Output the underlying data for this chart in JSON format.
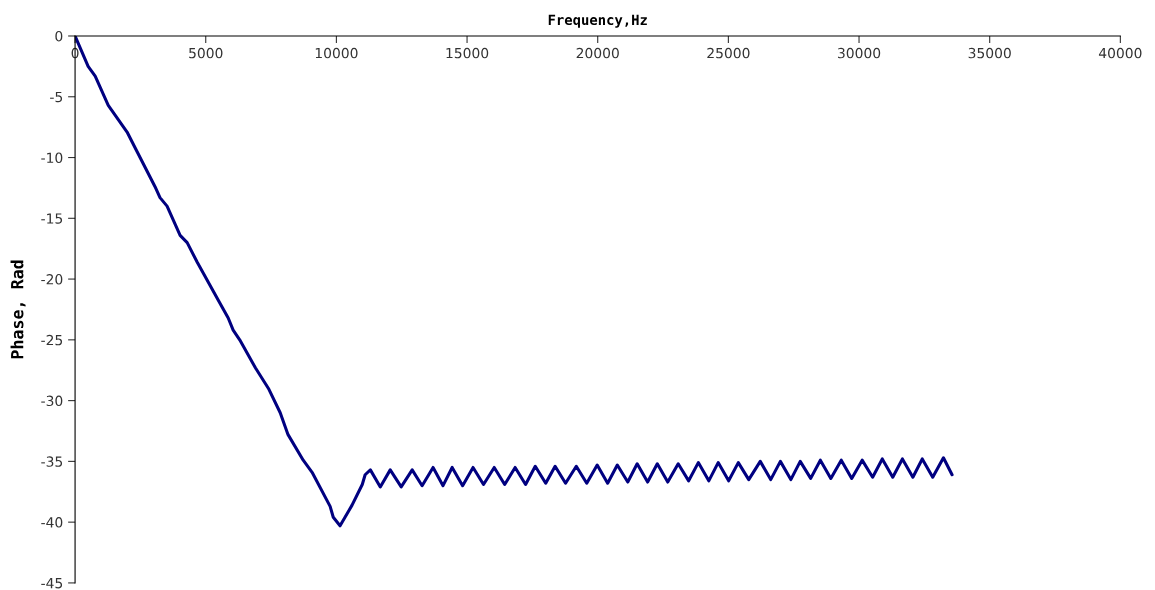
{
  "chart_data": {
    "type": "line",
    "xlabel": "Frequency,Hz",
    "ylabel": "Phase, Rad",
    "x": [
      0,
      500,
      770,
      1270,
      1990,
      2370,
      3060,
      3250,
      3520,
      4020,
      4290,
      4670,
      5470,
      5860,
      6050,
      6300,
      6900,
      7400,
      7850,
      8150,
      8730,
      9070,
      9760,
      9880,
      10140,
      10330,
      10600,
      10990,
      11100,
      11300,
      11680,
      12060,
      12480,
      12900,
      13280,
      13700,
      14080,
      14430,
      14830,
      15230,
      15630,
      16040,
      16440,
      16840,
      17240,
      17610,
      18010,
      18370,
      18770,
      19180,
      19580,
      19980,
      20380,
      20750,
      21150,
      21510,
      21910,
      22280,
      22680,
      23080,
      23480,
      23850,
      24250,
      24610,
      25010,
      25380,
      25780,
      26220,
      26620,
      26990,
      27390,
      27750,
      28150,
      28520,
      28920,
      29320,
      29720,
      30120,
      30520,
      30890,
      31290,
      31660,
      32060,
      32420,
      32820,
      33230,
      33560
    ],
    "series": [
      {
        "color": "#000080",
        "values": [
          0,
          -2.5,
          -3.3,
          -5.7,
          -7.9,
          -9.5,
          -12.4,
          -13.3,
          -14.0,
          -16.4,
          -17.0,
          -18.6,
          -21.7,
          -23.2,
          -24.2,
          -25.0,
          -27.3,
          -29.0,
          -31.0,
          -32.8,
          -34.9,
          -35.9,
          -38.7,
          -39.6,
          -40.3,
          -39.6,
          -38.6,
          -36.9,
          -36.1,
          -35.7,
          -37.1,
          -35.7,
          -37.1,
          -35.7,
          -37.0,
          -35.5,
          -37.0,
          -35.5,
          -37.0,
          -35.5,
          -36.9,
          -35.5,
          -36.9,
          -35.5,
          -36.9,
          -35.4,
          -36.8,
          -35.4,
          -36.8,
          -35.4,
          -36.8,
          -35.3,
          -36.8,
          -35.3,
          -36.7,
          -35.2,
          -36.7,
          -35.2,
          -36.7,
          -35.2,
          -36.6,
          -35.1,
          -36.6,
          -35.1,
          -36.6,
          -35.1,
          -36.5,
          -35.0,
          -36.5,
          -35.0,
          -36.5,
          -35.0,
          -36.4,
          -34.9,
          -36.4,
          -34.9,
          -36.4,
          -34.9,
          -36.3,
          -34.8,
          -36.3,
          -34.8,
          -36.3,
          -34.8,
          -36.3,
          -34.7,
          -36.1
        ]
      }
    ],
    "xlim": [
      0,
      40000
    ],
    "ylim": [
      -45,
      0
    ],
    "xticks": [
      0,
      5000,
      10000,
      15000,
      20000,
      25000,
      30000,
      35000,
      40000
    ],
    "yticks": [
      -45,
      -40,
      -35,
      -30,
      -25,
      -20,
      -15,
      -10,
      -5,
      0
    ]
  }
}
